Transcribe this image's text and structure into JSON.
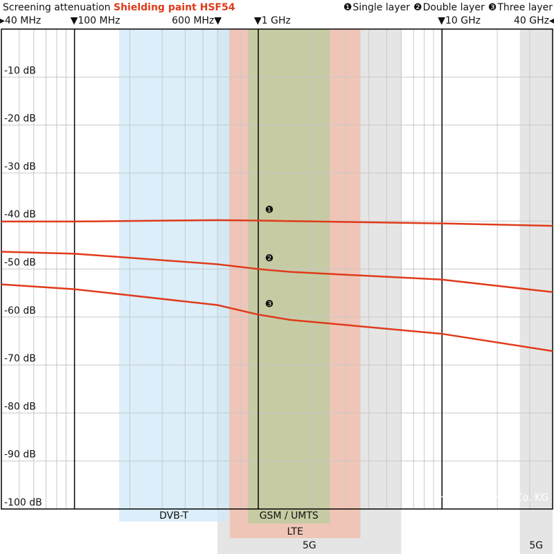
{
  "chart_data": {
    "type": "line",
    "title": "Screening attenuation",
    "subtitle": "Shielding paint HSF54",
    "x": [
      40,
      100,
      600,
      1000,
      1500,
      10000,
      40000
    ],
    "series": [
      {
        "name": "Single layer",
        "marker": "❶",
        "color": "#e03a1a",
        "values": [
          -40.1,
          -40.1,
          -39.8,
          -39.9,
          -40.0,
          -40.5,
          -41.0
        ]
      },
      {
        "name": "Double layer",
        "marker": "❷",
        "color": "#e03a1a",
        "values": [
          -46.4,
          -46.8,
          -49.0,
          -50.0,
          -50.6,
          -52.2,
          -54.8
        ]
      },
      {
        "name": "Three layer",
        "marker": "❸",
        "color": "#e03a1a",
        "values": [
          -53.2,
          -54.2,
          -57.5,
          -59.5,
          -60.6,
          -63.5,
          -67.1
        ]
      }
    ],
    "xscale": "log",
    "xlim": [
      40,
      40000
    ],
    "xticks": [
      {
        "value": 40,
        "label": "▸40 MHz"
      },
      {
        "value": 100,
        "label": "▼100 MHz"
      },
      {
        "value": 600,
        "label": "600 MHz▼"
      },
      {
        "value": 1000,
        "label": "▼1 GHz"
      },
      {
        "value": 10000,
        "label": "▼10 GHz"
      },
      {
        "value": 40000,
        "label": "40 GHz◂"
      }
    ],
    "xmajor": [
      100,
      1000,
      10000
    ],
    "xgrid": [
      50,
      60,
      70,
      80,
      90,
      200,
      300,
      400,
      500,
      600,
      700,
      800,
      900,
      2000,
      3000,
      4000,
      5000,
      6000,
      7000,
      8000,
      9000,
      20000,
      30000
    ],
    "ylim": [
      -100,
      0
    ],
    "yticks": [
      {
        "value": -10,
        "label": "-10 dB"
      },
      {
        "value": -20,
        "label": "-20 dB"
      },
      {
        "value": -30,
        "label": "-30 dB"
      },
      {
        "value": -40,
        "label": "-40 dB"
      },
      {
        "value": -50,
        "label": "-50 dB"
      },
      {
        "value": -60,
        "label": "-60 dB"
      },
      {
        "value": -70,
        "label": "-70 dB"
      },
      {
        "value": -80,
        "label": "-80 dB"
      },
      {
        "value": -90,
        "label": "-90 dB"
      },
      {
        "value": -100,
        "label": "-100 dB"
      }
    ],
    "grid": true,
    "bands": [
      {
        "label": "5G",
        "range": [
          600,
          6000
        ],
        "color": "#dcdcdc"
      },
      {
        "label": "5G",
        "range": [
          26500,
          40000
        ],
        "color": "#dcdcdc"
      },
      {
        "label": "DVB-T",
        "range": [
          175,
          690
        ],
        "color": "#cfe8f8"
      },
      {
        "label": "LTE",
        "range": [
          700,
          3600
        ],
        "color": "#f2b9a8"
      },
      {
        "label": "GSM / UMTS",
        "range": [
          880,
          2450
        ],
        "color": "#b8cc9c"
      }
    ],
    "copyright": "© YSHIELD GmbH & Co. KG"
  }
}
